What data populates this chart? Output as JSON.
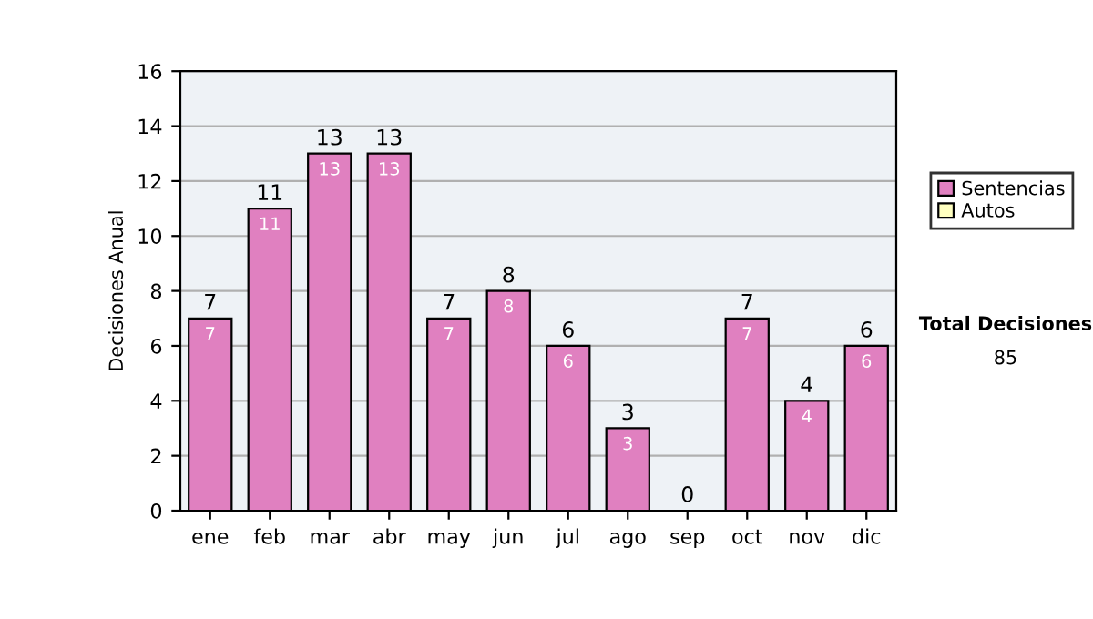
{
  "chart_data": {
    "type": "bar",
    "stacked": true,
    "ylabel": "Decisiones Anual",
    "categories": [
      "ene",
      "feb",
      "mar",
      "abr",
      "may",
      "jun",
      "jul",
      "ago",
      "sep",
      "oct",
      "nov",
      "dic"
    ],
    "series": [
      {
        "name": "Sentencias",
        "color": "#e080c0",
        "values": [
          7,
          11,
          13,
          13,
          7,
          8,
          6,
          3,
          0,
          7,
          4,
          6
        ],
        "value_labels": [
          "7",
          "11",
          "13",
          "13",
          "7",
          "8",
          "6",
          "3",
          null,
          "7",
          "4",
          "6"
        ]
      },
      {
        "name": "Autos",
        "color": "#ffffc0",
        "values": [
          0,
          0,
          0,
          0,
          0,
          0,
          0,
          0,
          0,
          0,
          0,
          0
        ]
      }
    ],
    "totals": [
      "7",
      "11",
      "13",
      "13",
      "7",
      "8",
      "6",
      "3",
      "0",
      "7",
      "4",
      "6"
    ],
    "ylim": [
      0,
      16
    ],
    "yticks": [
      0,
      2,
      4,
      6,
      8,
      10,
      12,
      14,
      16
    ],
    "grid": "y",
    "legend": "right",
    "annotations": [
      "Total Decisiones",
      "85"
    ]
  }
}
